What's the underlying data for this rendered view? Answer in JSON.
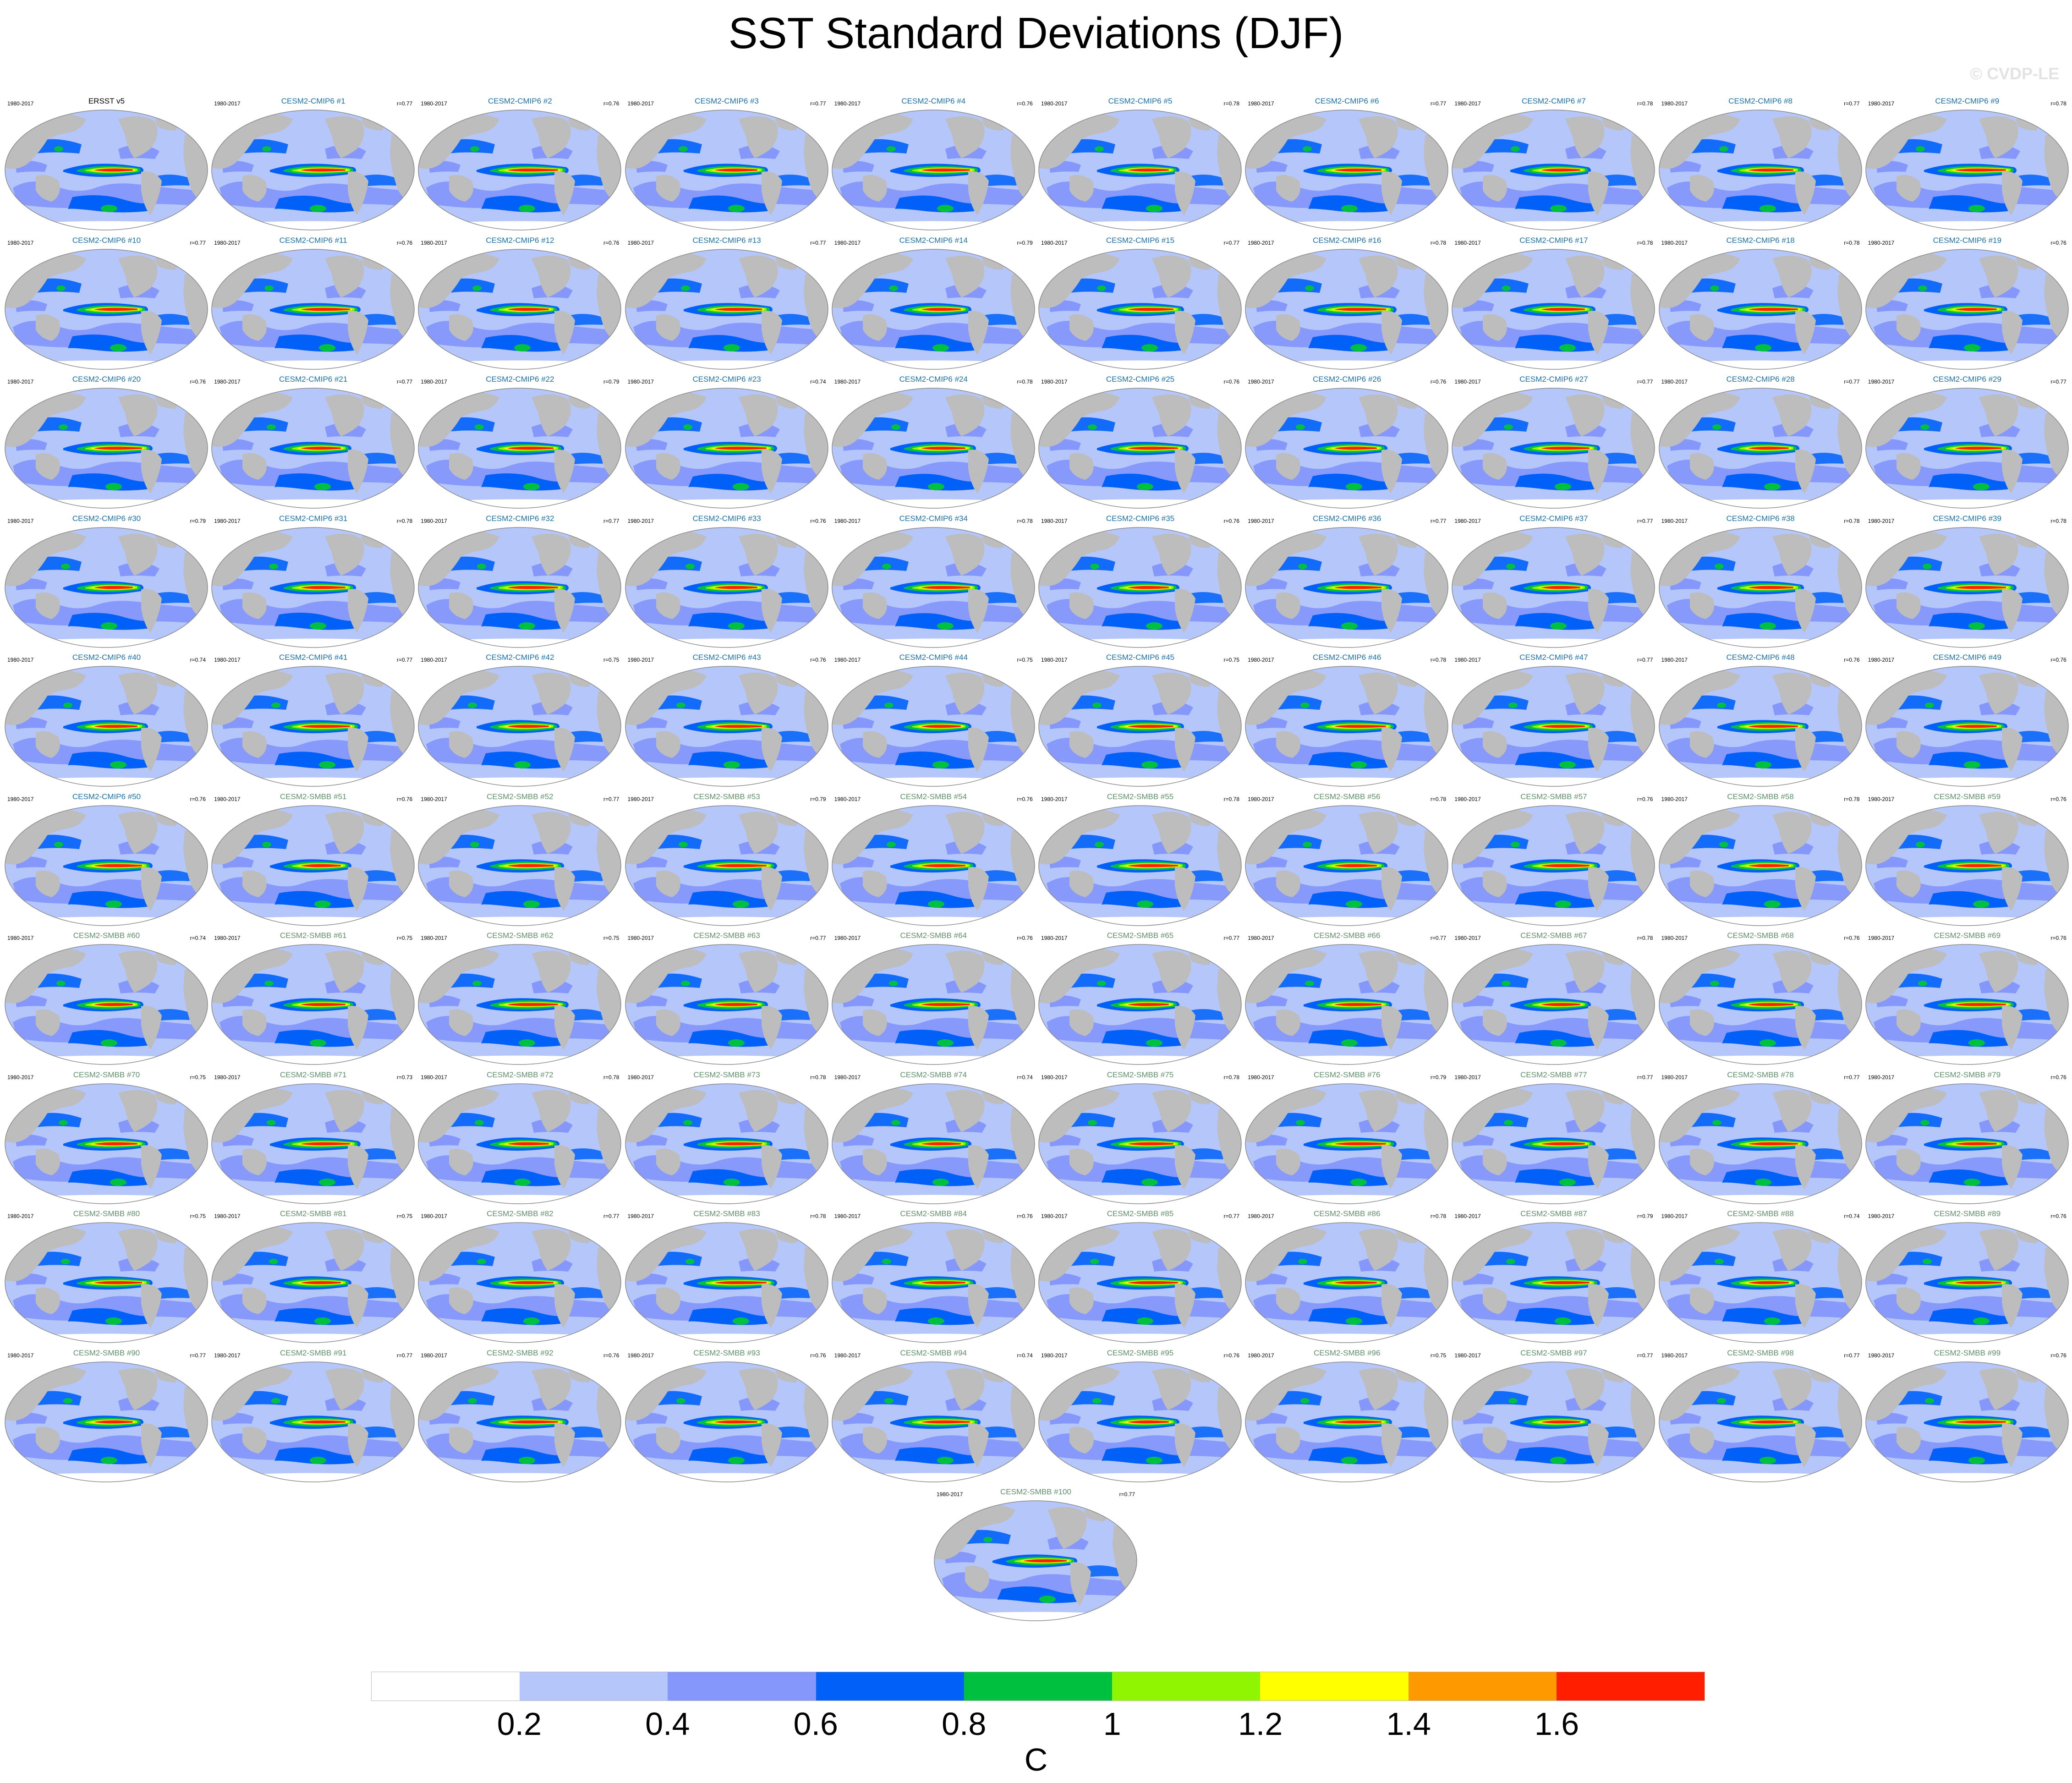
{
  "title": "SST Standard Deviations (DJF)",
  "watermark": "© CVDP-LE",
  "period": "1980-2017",
  "colors": {
    "observation_title": "#000000",
    "cmip6_title": "#1a6fa6",
    "smbb_title": "#5f8f6a",
    "ocean_bg": "#b5c6fb",
    "land": "#bdbdbd",
    "map_outline": "#8a8a8a"
  },
  "colorbar": {
    "colors": [
      "#ffffff",
      "#b5c6fb",
      "#8597fa",
      "#0060f8",
      "#00c040",
      "#8ff500",
      "#ffff00",
      "#ff9900",
      "#ff1e00"
    ],
    "ticks": [
      "0.2",
      "0.4",
      "0.6",
      "0.8",
      "1",
      "1.2",
      "1.4",
      "1.6"
    ],
    "units": "C"
  },
  "panels": [
    {
      "title": "ERSST v5",
      "r": "",
      "group": "obs"
    },
    {
      "title": "CESM2-CMIP6 #1",
      "r": "r=0.77",
      "group": "cmip6"
    },
    {
      "title": "CESM2-CMIP6 #2",
      "r": "r=0.76",
      "group": "cmip6"
    },
    {
      "title": "CESM2-CMIP6 #3",
      "r": "r=0.77",
      "group": "cmip6"
    },
    {
      "title": "CESM2-CMIP6 #4",
      "r": "r=0.76",
      "group": "cmip6"
    },
    {
      "title": "CESM2-CMIP6 #5",
      "r": "r=0.78",
      "group": "cmip6"
    },
    {
      "title": "CESM2-CMIP6 #6",
      "r": "r=0.77",
      "group": "cmip6"
    },
    {
      "title": "CESM2-CMIP6 #7",
      "r": "r=0.78",
      "group": "cmip6"
    },
    {
      "title": "CESM2-CMIP6 #8",
      "r": "r=0.77",
      "group": "cmip6"
    },
    {
      "title": "CESM2-CMIP6 #9",
      "r": "r=0.78",
      "group": "cmip6"
    },
    {
      "title": "CESM2-CMIP6 #10",
      "r": "r=0.77",
      "group": "cmip6"
    },
    {
      "title": "CESM2-CMIP6 #11",
      "r": "r=0.76",
      "group": "cmip6"
    },
    {
      "title": "CESM2-CMIP6 #12",
      "r": "r=0.76",
      "group": "cmip6"
    },
    {
      "title": "CESM2-CMIP6 #13",
      "r": "r=0.77",
      "group": "cmip6"
    },
    {
      "title": "CESM2-CMIP6 #14",
      "r": "r=0.79",
      "group": "cmip6"
    },
    {
      "title": "CESM2-CMIP6 #15",
      "r": "r=0.77",
      "group": "cmip6"
    },
    {
      "title": "CESM2-CMIP6 #16",
      "r": "r=0.78",
      "group": "cmip6"
    },
    {
      "title": "CESM2-CMIP6 #17",
      "r": "r=0.78",
      "group": "cmip6"
    },
    {
      "title": "CESM2-CMIP6 #18",
      "r": "r=0.78",
      "group": "cmip6"
    },
    {
      "title": "CESM2-CMIP6 #19",
      "r": "r=0.76",
      "group": "cmip6"
    },
    {
      "title": "CESM2-CMIP6 #20",
      "r": "r=0.76",
      "group": "cmip6"
    },
    {
      "title": "CESM2-CMIP6 #21",
      "r": "r=0.77",
      "group": "cmip6"
    },
    {
      "title": "CESM2-CMIP6 #22",
      "r": "r=0.79",
      "group": "cmip6"
    },
    {
      "title": "CESM2-CMIP6 #23",
      "r": "r=0.74",
      "group": "cmip6"
    },
    {
      "title": "CESM2-CMIP6 #24",
      "r": "r=0.78",
      "group": "cmip6"
    },
    {
      "title": "CESM2-CMIP6 #25",
      "r": "r=0.76",
      "group": "cmip6"
    },
    {
      "title": "CESM2-CMIP6 #26",
      "r": "r=0.76",
      "group": "cmip6"
    },
    {
      "title": "CESM2-CMIP6 #27",
      "r": "r=0.77",
      "group": "cmip6"
    },
    {
      "title": "CESM2-CMIP6 #28",
      "r": "r=0.77",
      "group": "cmip6"
    },
    {
      "title": "CESM2-CMIP6 #29",
      "r": "r=0.77",
      "group": "cmip6"
    },
    {
      "title": "CESM2-CMIP6 #30",
      "r": "r=0.79",
      "group": "cmip6"
    },
    {
      "title": "CESM2-CMIP6 #31",
      "r": "r=0.78",
      "group": "cmip6"
    },
    {
      "title": "CESM2-CMIP6 #32",
      "r": "r=0.77",
      "group": "cmip6"
    },
    {
      "title": "CESM2-CMIP6 #33",
      "r": "r=0.76",
      "group": "cmip6"
    },
    {
      "title": "CESM2-CMIP6 #34",
      "r": "r=0.78",
      "group": "cmip6"
    },
    {
      "title": "CESM2-CMIP6 #35",
      "r": "r=0.76",
      "group": "cmip6"
    },
    {
      "title": "CESM2-CMIP6 #36",
      "r": "r=0.77",
      "group": "cmip6"
    },
    {
      "title": "CESM2-CMIP6 #37",
      "r": "r=0.77",
      "group": "cmip6"
    },
    {
      "title": "CESM2-CMIP6 #38",
      "r": "r=0.78",
      "group": "cmip6"
    },
    {
      "title": "CESM2-CMIP6 #39",
      "r": "r=0.78",
      "group": "cmip6"
    },
    {
      "title": "CESM2-CMIP6 #40",
      "r": "r=0.74",
      "group": "cmip6"
    },
    {
      "title": "CESM2-CMIP6 #41",
      "r": "r=0.77",
      "group": "cmip6"
    },
    {
      "title": "CESM2-CMIP6 #42",
      "r": "r=0.75",
      "group": "cmip6"
    },
    {
      "title": "CESM2-CMIP6 #43",
      "r": "r=0.76",
      "group": "cmip6"
    },
    {
      "title": "CESM2-CMIP6 #44",
      "r": "r=0.75",
      "group": "cmip6"
    },
    {
      "title": "CESM2-CMIP6 #45",
      "r": "r=0.75",
      "group": "cmip6"
    },
    {
      "title": "CESM2-CMIP6 #46",
      "r": "r=0.78",
      "group": "cmip6"
    },
    {
      "title": "CESM2-CMIP6 #47",
      "r": "r=0.77",
      "group": "cmip6"
    },
    {
      "title": "CESM2-CMIP6 #48",
      "r": "r=0.76",
      "group": "cmip6"
    },
    {
      "title": "CESM2-CMIP6 #49",
      "r": "r=0.76",
      "group": "cmip6"
    },
    {
      "title": "CESM2-CMIP6 #50",
      "r": "r=0.76",
      "group": "cmip6"
    },
    {
      "title": "CESM2-SMBB #51",
      "r": "r=0.76",
      "group": "smbb"
    },
    {
      "title": "CESM2-SMBB #52",
      "r": "r=0.77",
      "group": "smbb"
    },
    {
      "title": "CESM2-SMBB #53",
      "r": "r=0.79",
      "group": "smbb"
    },
    {
      "title": "CESM2-SMBB #54",
      "r": "r=0.76",
      "group": "smbb"
    },
    {
      "title": "CESM2-SMBB #55",
      "r": "r=0.78",
      "group": "smbb"
    },
    {
      "title": "CESM2-SMBB #56",
      "r": "r=0.78",
      "group": "smbb"
    },
    {
      "title": "CESM2-SMBB #57",
      "r": "r=0.76",
      "group": "smbb"
    },
    {
      "title": "CESM2-SMBB #58",
      "r": "r=0.78",
      "group": "smbb"
    },
    {
      "title": "CESM2-SMBB #59",
      "r": "r=0.76",
      "group": "smbb"
    },
    {
      "title": "CESM2-SMBB #60",
      "r": "r=0.74",
      "group": "smbb"
    },
    {
      "title": "CESM2-SMBB #61",
      "r": "r=0.75",
      "group": "smbb"
    },
    {
      "title": "CESM2-SMBB #62",
      "r": "r=0.75",
      "group": "smbb"
    },
    {
      "title": "CESM2-SMBB #63",
      "r": "r=0.77",
      "group": "smbb"
    },
    {
      "title": "CESM2-SMBB #64",
      "r": "r=0.76",
      "group": "smbb"
    },
    {
      "title": "CESM2-SMBB #65",
      "r": "r=0.77",
      "group": "smbb"
    },
    {
      "title": "CESM2-SMBB #66",
      "r": "r=0.77",
      "group": "smbb"
    },
    {
      "title": "CESM2-SMBB #67",
      "r": "r=0.78",
      "group": "smbb"
    },
    {
      "title": "CESM2-SMBB #68",
      "r": "r=0.76",
      "group": "smbb"
    },
    {
      "title": "CESM2-SMBB #69",
      "r": "r=0.76",
      "group": "smbb"
    },
    {
      "title": "CESM2-SMBB #70",
      "r": "r=0.75",
      "group": "smbb"
    },
    {
      "title": "CESM2-SMBB #71",
      "r": "r=0.73",
      "group": "smbb"
    },
    {
      "title": "CESM2-SMBB #72",
      "r": "r=0.78",
      "group": "smbb"
    },
    {
      "title": "CESM2-SMBB #73",
      "r": "r=0.78",
      "group": "smbb"
    },
    {
      "title": "CESM2-SMBB #74",
      "r": "r=0.74",
      "group": "smbb"
    },
    {
      "title": "CESM2-SMBB #75",
      "r": "r=0.78",
      "group": "smbb"
    },
    {
      "title": "CESM2-SMBB #76",
      "r": "r=0.79",
      "group": "smbb"
    },
    {
      "title": "CESM2-SMBB #77",
      "r": "r=0.77",
      "group": "smbb"
    },
    {
      "title": "CESM2-SMBB #78",
      "r": "r=0.77",
      "group": "smbb"
    },
    {
      "title": "CESM2-SMBB #79",
      "r": "r=0.76",
      "group": "smbb"
    },
    {
      "title": "CESM2-SMBB #80",
      "r": "r=0.75",
      "group": "smbb"
    },
    {
      "title": "CESM2-SMBB #81",
      "r": "r=0.75",
      "group": "smbb"
    },
    {
      "title": "CESM2-SMBB #82",
      "r": "r=0.77",
      "group": "smbb"
    },
    {
      "title": "CESM2-SMBB #83",
      "r": "r=0.78",
      "group": "smbb"
    },
    {
      "title": "CESM2-SMBB #84",
      "r": "r=0.76",
      "group": "smbb"
    },
    {
      "title": "CESM2-SMBB #85",
      "r": "r=0.77",
      "group": "smbb"
    },
    {
      "title": "CESM2-SMBB #86",
      "r": "r=0.78",
      "group": "smbb"
    },
    {
      "title": "CESM2-SMBB #87",
      "r": "r=0.79",
      "group": "smbb"
    },
    {
      "title": "CESM2-SMBB #88",
      "r": "r=0.74",
      "group": "smbb"
    },
    {
      "title": "CESM2-SMBB #89",
      "r": "r=0.76",
      "group": "smbb"
    },
    {
      "title": "CESM2-SMBB #90",
      "r": "r=0.77",
      "group": "smbb"
    },
    {
      "title": "CESM2-SMBB #91",
      "r": "r=0.77",
      "group": "smbb"
    },
    {
      "title": "CESM2-SMBB #92",
      "r": "r=0.76",
      "group": "smbb"
    },
    {
      "title": "CESM2-SMBB #93",
      "r": "r=0.76",
      "group": "smbb"
    },
    {
      "title": "CESM2-SMBB #94",
      "r": "r=0.74",
      "group": "smbb"
    },
    {
      "title": "CESM2-SMBB #95",
      "r": "r=0.76",
      "group": "smbb"
    },
    {
      "title": "CESM2-SMBB #96",
      "r": "r=0.75",
      "group": "smbb"
    },
    {
      "title": "CESM2-SMBB #97",
      "r": "r=0.77",
      "group": "smbb"
    },
    {
      "title": "CESM2-SMBB #98",
      "r": "r=0.77",
      "group": "smbb"
    },
    {
      "title": "CESM2-SMBB #99",
      "r": "r=0.76",
      "group": "smbb"
    },
    {
      "title": "CESM2-SMBB #100",
      "r": "r=0.77",
      "group": "smbb"
    }
  ]
}
